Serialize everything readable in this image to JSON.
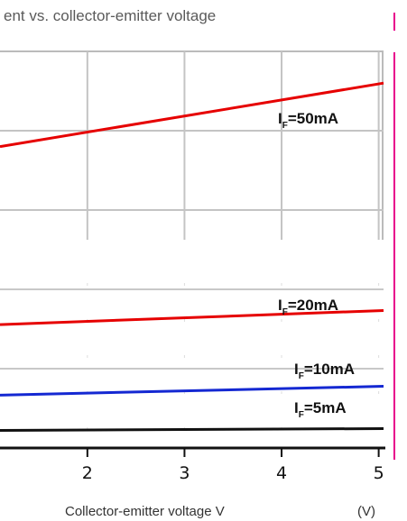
{
  "chart_data": {
    "type": "line",
    "title": "ent vs. collector-emitter voltage",
    "xlabel": "Collector-emitter voltage V",
    "xlabel_unit": "(V)",
    "x_ticks": [
      2,
      3,
      4,
      5
    ],
    "xlim": [
      1.1,
      5.05
    ],
    "grid": true,
    "series": [
      {
        "name": "I",
        "subscript": "F",
        "suffix": "=50mA",
        "color": "#e60000",
        "x": [
          1.1,
          5.05
        ],
        "y": [
          0.9,
          1.0
        ]
      },
      {
        "name": "I",
        "subscript": "F",
        "suffix": "=20mA",
        "color": "#e60000",
        "x": [
          1.1,
          5.05
        ],
        "y": [
          0.6,
          0.64
        ]
      },
      {
        "name": "I",
        "subscript": "F",
        "suffix": "=10mA",
        "color": "#1428d2",
        "x": [
          1.1,
          5.05
        ],
        "y": [
          0.4,
          0.425
        ]
      },
      {
        "name": "I",
        "subscript": "F",
        "suffix": "=5mA",
        "color": "#111111",
        "x": [
          1.1,
          5.05
        ],
        "y": [
          0.3,
          0.305
        ]
      }
    ],
    "accent_line_color": "#e8008c"
  }
}
